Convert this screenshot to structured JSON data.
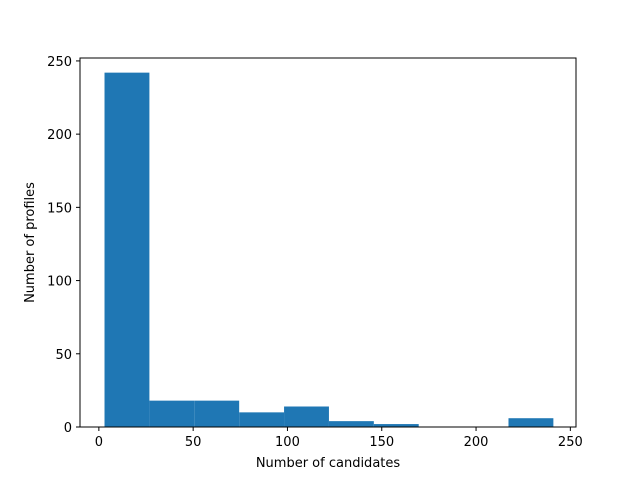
{
  "chart_data": {
    "type": "bar",
    "subtype": "histogram",
    "title": "",
    "xlabel": "Number of candidates",
    "ylabel": "Number of profiles",
    "xlim": [
      -10,
      253
    ],
    "ylim": [
      0,
      252
    ],
    "xticks": [
      0,
      50,
      100,
      150,
      200,
      250
    ],
    "yticks": [
      0,
      50,
      100,
      150,
      200,
      250
    ],
    "grid": false,
    "legend": "none",
    "bar_color": "#1f77b4",
    "bins": [
      {
        "x0": 3.0,
        "x1": 26.8,
        "count": 242
      },
      {
        "x0": 26.8,
        "x1": 50.6,
        "count": 18
      },
      {
        "x0": 50.6,
        "x1": 74.4,
        "count": 18
      },
      {
        "x0": 74.4,
        "x1": 98.2,
        "count": 10
      },
      {
        "x0": 98.2,
        "x1": 122.0,
        "count": 14
      },
      {
        "x0": 122.0,
        "x1": 145.8,
        "count": 4
      },
      {
        "x0": 145.8,
        "x1": 169.6,
        "count": 2
      },
      {
        "x0": 169.6,
        "x1": 193.4,
        "count": 0
      },
      {
        "x0": 193.4,
        "x1": 217.2,
        "count": 0
      },
      {
        "x0": 217.2,
        "x1": 241.0,
        "count": 6
      }
    ]
  }
}
